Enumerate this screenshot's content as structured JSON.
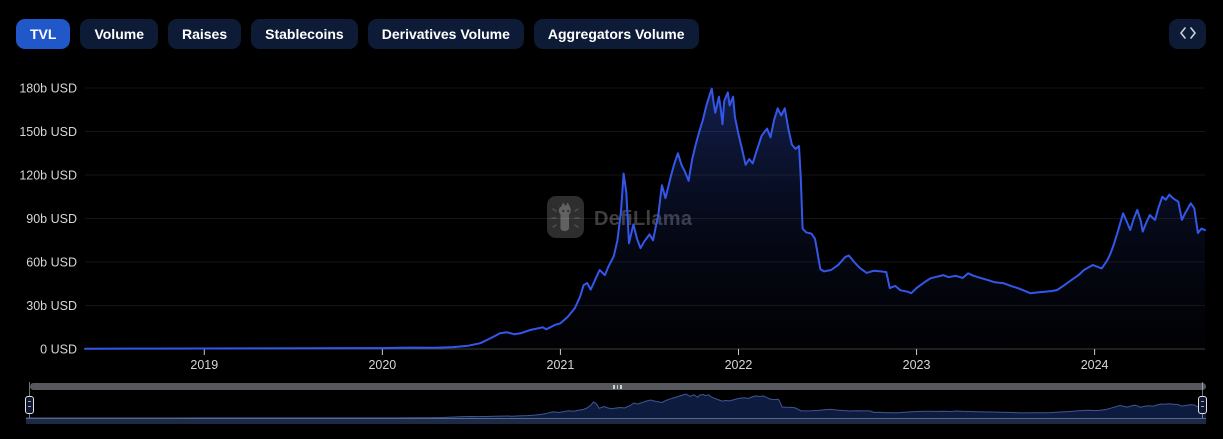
{
  "tabs": [
    {
      "label": "TVL",
      "active": true
    },
    {
      "label": "Volume",
      "active": false
    },
    {
      "label": "Raises",
      "active": false
    },
    {
      "label": "Stablecoins",
      "active": false
    },
    {
      "label": "Derivatives Volume",
      "active": false
    },
    {
      "label": "Aggregators Volume",
      "active": false
    }
  ],
  "toolbar": {
    "embed_icon": "code-angle-brackets"
  },
  "watermark": {
    "text": "DefiLlama",
    "logo": "llama-icon"
  },
  "colors": {
    "background": "#000000",
    "tab_active_bg": "#2057c9",
    "tab_bg": "#0d1b36",
    "tab_text": "#ffffff",
    "line": "#3457e9",
    "area_top": "rgba(56,94,232,0.34)",
    "area_mid": "rgba(38,62,160,0.16)",
    "area_bottom": "rgba(30,45,110,0.04)",
    "grid": "rgba(255,255,255,0.08)",
    "axis_line": "#3d3d3d",
    "tick": "#c9c9c9",
    "axis_text": "#d6d6d6",
    "scrollbar": "#56585d",
    "nav_fill": "#0d1c3e",
    "nav_stroke": "#4a63a8",
    "nav_strip": "#1d2a45",
    "nav_strip_edge": "#55688a",
    "handle_border": "#dfe3ea",
    "handle_fill": "#0f1830"
  },
  "chart_data": {
    "type": "area",
    "title": "",
    "xlabel": "",
    "ylabel": "",
    "unit": "USD (billions)",
    "legend_visible": false,
    "grid": "horizontal-only",
    "x_range": [
      2018.33,
      2024.62
    ],
    "y_range": [
      0,
      180
    ],
    "y_ticks": {
      "values": [
        0,
        30,
        60,
        90,
        120,
        150,
        180
      ],
      "labels": [
        "0 USD",
        "30b USD",
        "60b USD",
        "90b USD",
        "120b USD",
        "150b USD",
        "180b USD"
      ]
    },
    "x_ticks": {
      "values": [
        2019,
        2020,
        2021,
        2022,
        2023,
        2024
      ],
      "labels": [
        "2019",
        "2020",
        "2021",
        "2022",
        "2023",
        "2024"
      ]
    },
    "series": [
      {
        "name": "TVL",
        "points": [
          [
            2018.33,
            0.15
          ],
          [
            2018.7,
            0.25
          ],
          [
            2019.0,
            0.35
          ],
          [
            2019.3,
            0.4
          ],
          [
            2019.6,
            0.5
          ],
          [
            2019.9,
            0.6
          ],
          [
            2020.0,
            0.65
          ],
          [
            2020.1,
            0.8
          ],
          [
            2020.18,
            0.95
          ],
          [
            2020.25,
            0.8
          ],
          [
            2020.3,
            0.9
          ],
          [
            2020.4,
            1.3
          ],
          [
            2020.48,
            2.2
          ],
          [
            2020.55,
            4.0
          ],
          [
            2020.6,
            7.0
          ],
          [
            2020.64,
            9.5
          ],
          [
            2020.66,
            10.8
          ],
          [
            2020.7,
            11.5
          ],
          [
            2020.74,
            10.2
          ],
          [
            2020.78,
            11.0
          ],
          [
            2020.83,
            13.1
          ],
          [
            2020.9,
            15.0
          ],
          [
            2020.92,
            13.6
          ],
          [
            2020.97,
            16.6
          ],
          [
            2021.0,
            17.7
          ],
          [
            2021.04,
            22
          ],
          [
            2021.08,
            28
          ],
          [
            2021.11,
            36
          ],
          [
            2021.13,
            44
          ],
          [
            2021.15,
            45.5
          ],
          [
            2021.17,
            41
          ],
          [
            2021.2,
            49
          ],
          [
            2021.22,
            54.5
          ],
          [
            2021.25,
            51
          ],
          [
            2021.27,
            57
          ],
          [
            2021.3,
            64
          ],
          [
            2021.32,
            75
          ],
          [
            2021.34,
            95
          ],
          [
            2021.355,
            121
          ],
          [
            2021.37,
            108
          ],
          [
            2021.385,
            73
          ],
          [
            2021.41,
            86
          ],
          [
            2021.43,
            76
          ],
          [
            2021.45,
            69.5
          ],
          [
            2021.47,
            74
          ],
          [
            2021.5,
            79
          ],
          [
            2021.52,
            75
          ],
          [
            2021.55,
            93
          ],
          [
            2021.57,
            113
          ],
          [
            2021.59,
            104
          ],
          [
            2021.62,
            119
          ],
          [
            2021.64,
            128
          ],
          [
            2021.66,
            135
          ],
          [
            2021.68,
            127
          ],
          [
            2021.7,
            122
          ],
          [
            2021.72,
            116
          ],
          [
            2021.74,
            131
          ],
          [
            2021.76,
            141
          ],
          [
            2021.78,
            150
          ],
          [
            2021.8,
            158
          ],
          [
            2021.82,
            168
          ],
          [
            2021.84,
            176
          ],
          [
            2021.85,
            179.5
          ],
          [
            2021.86,
            170
          ],
          [
            2021.87,
            163
          ],
          [
            2021.89,
            174
          ],
          [
            2021.9,
            166
          ],
          [
            2021.91,
            155
          ],
          [
            2021.92,
            171
          ],
          [
            2021.94,
            177
          ],
          [
            2021.95,
            168
          ],
          [
            2021.97,
            174
          ],
          [
            2021.98,
            160
          ],
          [
            2022.0,
            148
          ],
          [
            2022.02,
            138
          ],
          [
            2022.04,
            127
          ],
          [
            2022.06,
            131
          ],
          [
            2022.08,
            128
          ],
          [
            2022.1,
            136
          ],
          [
            2022.13,
            147
          ],
          [
            2022.16,
            152
          ],
          [
            2022.18,
            146
          ],
          [
            2022.2,
            158
          ],
          [
            2022.22,
            166
          ],
          [
            2022.24,
            161
          ],
          [
            2022.26,
            166
          ],
          [
            2022.28,
            152
          ],
          [
            2022.3,
            141
          ],
          [
            2022.32,
            138
          ],
          [
            2022.34,
            140
          ],
          [
            2022.35,
            118
          ],
          [
            2022.36,
            83
          ],
          [
            2022.38,
            80.5
          ],
          [
            2022.41,
            79.5
          ],
          [
            2022.43,
            76
          ],
          [
            2022.46,
            55
          ],
          [
            2022.48,
            53.5
          ],
          [
            2022.52,
            54.5
          ],
          [
            2022.56,
            58
          ],
          [
            2022.6,
            63.5
          ],
          [
            2022.62,
            64.5
          ],
          [
            2022.65,
            60
          ],
          [
            2022.68,
            56
          ],
          [
            2022.72,
            52.5
          ],
          [
            2022.76,
            54
          ],
          [
            2022.8,
            53.5
          ],
          [
            2022.83,
            53
          ],
          [
            2022.85,
            42
          ],
          [
            2022.88,
            43.5
          ],
          [
            2022.91,
            40.5
          ],
          [
            2022.95,
            39.5
          ],
          [
            2022.97,
            38.5
          ],
          [
            2023.0,
            42
          ],
          [
            2023.05,
            46.5
          ],
          [
            2023.08,
            48.8
          ],
          [
            2023.12,
            50
          ],
          [
            2023.15,
            51
          ],
          [
            2023.18,
            49.5
          ],
          [
            2023.22,
            50.5
          ],
          [
            2023.26,
            49
          ],
          [
            2023.29,
            52.2
          ],
          [
            2023.32,
            50.5
          ],
          [
            2023.36,
            49
          ],
          [
            2023.4,
            47.5
          ],
          [
            2023.44,
            46
          ],
          [
            2023.49,
            45.3
          ],
          [
            2023.53,
            43.5
          ],
          [
            2023.57,
            41.9
          ],
          [
            2023.6,
            40.5
          ],
          [
            2023.64,
            38.4
          ],
          [
            2023.68,
            39
          ],
          [
            2023.72,
            39.5
          ],
          [
            2023.76,
            40
          ],
          [
            2023.79,
            40.7
          ],
          [
            2023.83,
            44
          ],
          [
            2023.87,
            47.6
          ],
          [
            2023.91,
            51
          ],
          [
            2023.94,
            54.5
          ],
          [
            2023.99,
            57.9
          ],
          [
            2024.02,
            56.5
          ],
          [
            2024.04,
            55.6
          ],
          [
            2024.07,
            61
          ],
          [
            2024.09,
            66
          ],
          [
            2024.11,
            73
          ],
          [
            2024.13,
            80.9
          ],
          [
            2024.16,
            93.6
          ],
          [
            2024.18,
            88
          ],
          [
            2024.2,
            82.1
          ],
          [
            2024.22,
            90
          ],
          [
            2024.24,
            95.9
          ],
          [
            2024.26,
            88
          ],
          [
            2024.27,
            81
          ],
          [
            2024.29,
            87
          ],
          [
            2024.31,
            92.4
          ],
          [
            2024.33,
            90
          ],
          [
            2024.34,
            89
          ],
          [
            2024.36,
            98
          ],
          [
            2024.38,
            105
          ],
          [
            2024.4,
            103
          ],
          [
            2024.42,
            106.5
          ],
          [
            2024.44,
            104
          ],
          [
            2024.47,
            101.6
          ],
          [
            2024.49,
            89
          ],
          [
            2024.51,
            94
          ],
          [
            2024.54,
            100.5
          ],
          [
            2024.56,
            97
          ],
          [
            2024.58,
            80
          ],
          [
            2024.6,
            83
          ],
          [
            2024.62,
            82
          ]
        ]
      }
    ]
  },
  "navigator": {
    "left_handle": true,
    "right_handle": true,
    "scrollbar_grip": "center-dashes"
  }
}
